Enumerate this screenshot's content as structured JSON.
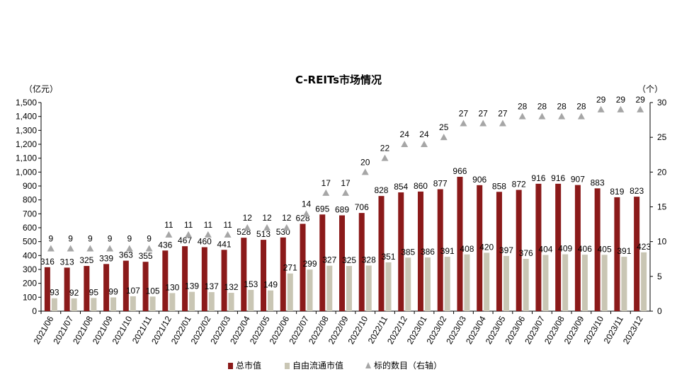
{
  "chart_data": {
    "type": "bar",
    "title": "C-REITs市场情况",
    "y_left_unit": "（亿元）",
    "y_right_unit": "（个）",
    "ylim_left": [
      0,
      1500
    ],
    "ylim_right": [
      0,
      30
    ],
    "yticks_left": [
      "0",
      "100",
      "200",
      "300",
      "400",
      "500",
      "600",
      "700",
      "800",
      "900",
      "1,000",
      "1,100",
      "1,200",
      "1,300",
      "1,400",
      "1,500"
    ],
    "yticks_right": [
      "0",
      "5",
      "10",
      "15",
      "20",
      "25",
      "30"
    ],
    "categories": [
      "2021/06",
      "2021/07",
      "2021/08",
      "2021/09",
      "2021/10",
      "2021/11",
      "2021/12",
      "2022/01",
      "2022/02",
      "2022/03",
      "2022/04",
      "2022/05",
      "2022/06",
      "2022/07",
      "2022/08",
      "2022/09",
      "2022/10",
      "2022/11",
      "2022/12",
      "2023/01",
      "2023/02",
      "2023/03",
      "2023/04",
      "2023/05",
      "2023/06",
      "2023/07",
      "2023/08",
      "2023/09",
      "2023/10",
      "2023/11",
      "2023/12"
    ],
    "series": [
      {
        "name": "总市值",
        "type": "bar",
        "axis": "left",
        "color": "#8B1A1A",
        "values": [
          316,
          313,
          325,
          339,
          363,
          355,
          436,
          467,
          460,
          441,
          528,
          513,
          530,
          628,
          695,
          689,
          706,
          828,
          854,
          860,
          877,
          966,
          906,
          858,
          872,
          916,
          916,
          907,
          883,
          819,
          823
        ]
      },
      {
        "name": "自由流通市值",
        "type": "bar",
        "axis": "left",
        "color": "#C9C6B4",
        "values": [
          93,
          92,
          95,
          99,
          107,
          105,
          130,
          139,
          137,
          132,
          153,
          149,
          271,
          299,
          327,
          325,
          328,
          351,
          385,
          386,
          391,
          408,
          420,
          397,
          376,
          404,
          409,
          406,
          405,
          391,
          423
        ]
      },
      {
        "name": "标的数目（右轴）",
        "type": "scatter",
        "axis": "right",
        "color": "#A6A6A6",
        "values": [
          9,
          9,
          9,
          9,
          9,
          9,
          11,
          11,
          11,
          11,
          12,
          12,
          12,
          14,
          17,
          17,
          20,
          22,
          24,
          24,
          25,
          27,
          27,
          27,
          28,
          28,
          28,
          28,
          29,
          29,
          29
        ]
      }
    ],
    "legend_position": "bottom",
    "grid": false
  }
}
